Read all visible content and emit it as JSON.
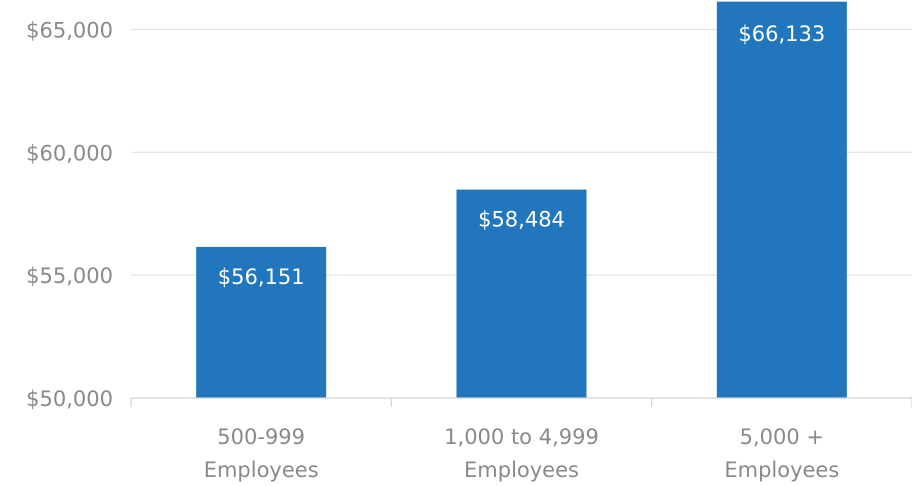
{
  "chart_data": {
    "type": "bar",
    "categories": [
      [
        "500-999",
        "Employees"
      ],
      [
        "1,000 to 4,999",
        "Employees"
      ],
      [
        "5,000 +",
        "Employees"
      ]
    ],
    "values": [
      56151,
      58484,
      66133
    ],
    "data_labels": [
      "$56,151",
      "$58,484",
      "$66,133"
    ],
    "ylim": [
      50000,
      66200
    ],
    "yticks": [
      50000,
      55000,
      60000,
      65000
    ],
    "ytick_labels": [
      "$50,000",
      "$55,000",
      "$60,000",
      "$65,000"
    ],
    "title": "",
    "xlabel": "",
    "ylabel": "",
    "grid": true,
    "legend": "none",
    "bar_color": "#2176bd"
  }
}
